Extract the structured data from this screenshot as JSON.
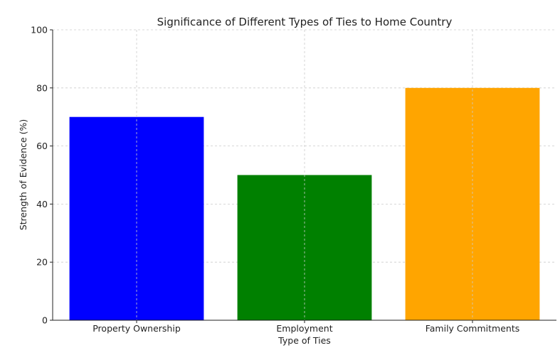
{
  "chart_data": {
    "type": "bar",
    "title": "Significance of Different Types of Ties to Home Country",
    "xlabel": "Type of Ties",
    "ylabel": "Strength of Evidence (%)",
    "categories": [
      "Property Ownership",
      "Employment",
      "Family Commitments"
    ],
    "values": [
      70,
      50,
      80
    ],
    "colors": [
      "#0000ff",
      "#008000",
      "#ffa500"
    ],
    "ylim": [
      0,
      100
    ],
    "yticks": [
      0,
      20,
      40,
      60,
      80,
      100
    ],
    "grid": true,
    "legend": "none"
  }
}
